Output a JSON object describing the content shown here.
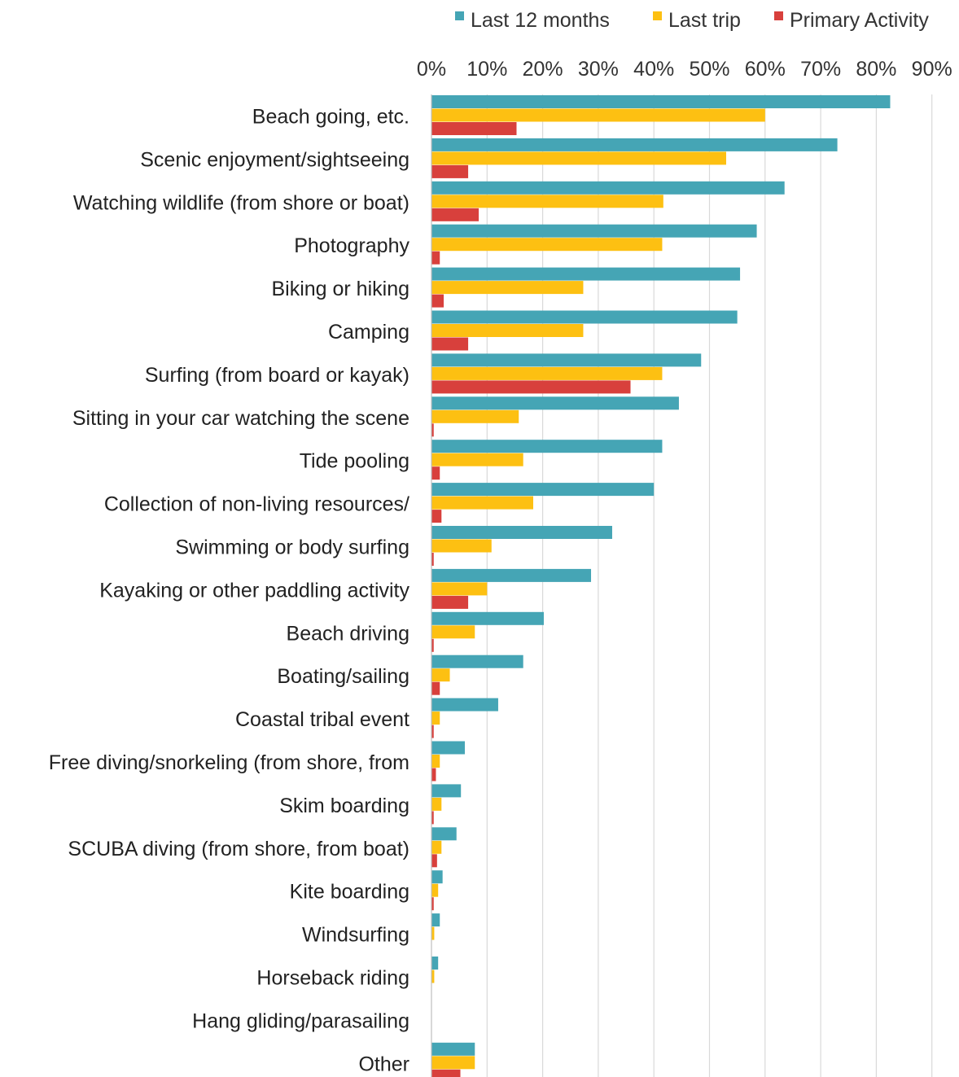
{
  "chart_data": {
    "type": "bar",
    "orientation": "horizontal",
    "categories": [
      "Beach going, etc.",
      "Scenic enjoyment/sightseeing",
      "Watching wildlife (from shore or boat)",
      "Photography",
      "Biking or hiking",
      "Camping",
      "Surfing (from board or kayak)",
      "Sitting in your car watching the scene",
      "Tide pooling",
      "Collection of non-living resources/",
      "Swimming or body surfing",
      "Kayaking or other paddling activity",
      "Beach driving",
      "Boating/sailing",
      "Coastal tribal event",
      "Free diving/snorkeling (from shore, from",
      "Skim boarding",
      "SCUBA diving (from shore, from boat)",
      "Kite boarding",
      "Windsurfing",
      "Horseback riding",
      "Hang gliding/parasailing",
      "Other"
    ],
    "series": [
      {
        "name": "Last 12 months",
        "color": "#45A5B5",
        "values": [
          82.5,
          73,
          63.5,
          58.5,
          55.5,
          55,
          48.5,
          44.5,
          41.5,
          40,
          32.5,
          28.7,
          20.2,
          16.5,
          12,
          6,
          5.3,
          4.5,
          2,
          1.5,
          1.2,
          0,
          7.8
        ]
      },
      {
        "name": "Last trip",
        "color": "#FDC012",
        "values": [
          60,
          53,
          41.7,
          41.5,
          27.3,
          27.3,
          41.5,
          15.7,
          16.5,
          18.3,
          10.8,
          10,
          7.8,
          3.3,
          1.5,
          1.5,
          1.8,
          1.8,
          1.2,
          0.5,
          0.5,
          0,
          7.8
        ]
      },
      {
        "name": "Primary Activity",
        "color": "#D8403C",
        "values": [
          15.3,
          6.6,
          8.5,
          1.5,
          2.2,
          6.6,
          35.8,
          0.4,
          1.5,
          1.8,
          0.4,
          6.6,
          0.4,
          1.5,
          0.4,
          0.8,
          0.4,
          1,
          0.4,
          0,
          0,
          0,
          5.2
        ]
      }
    ],
    "x_ticks": [
      "0%",
      "10%",
      "20%",
      "30%",
      "40%",
      "50%",
      "60%",
      "70%",
      "80%",
      "90%"
    ],
    "xlim": [
      0,
      90
    ],
    "x_axis_position": "top",
    "legend_position": "top",
    "grid": true
  }
}
